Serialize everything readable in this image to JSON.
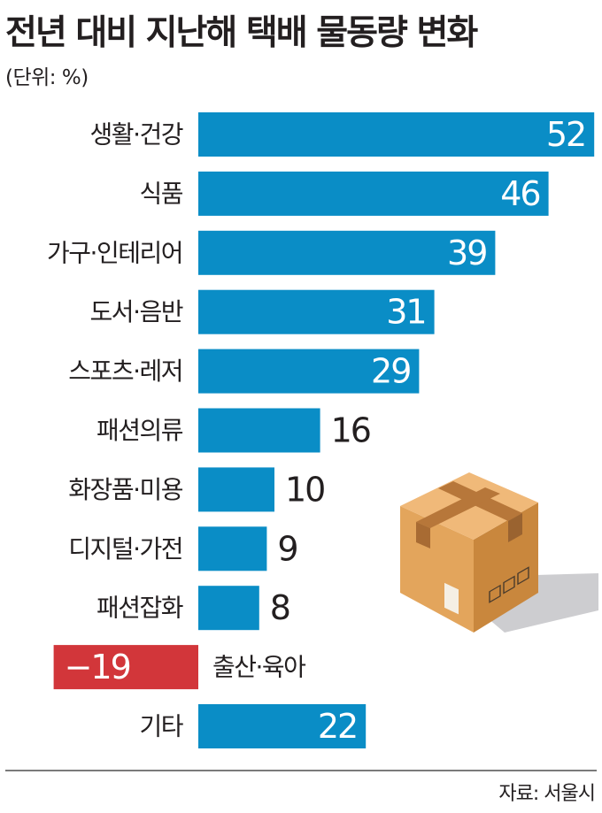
{
  "title": "전년 대비 지난해 택배 물동량 변화",
  "unit_note": "(단위: %)",
  "source": "자료: 서울시",
  "colors": {
    "positive": "#0a8dc6",
    "negative": "#d2363a",
    "text": "#231f20"
  },
  "chart_data": {
    "type": "bar",
    "orientation": "horizontal",
    "categories": [
      "생활·건강",
      "식품",
      "가구·인테리어",
      "도서·음반",
      "스포츠·레저",
      "패션의류",
      "화장품·미용",
      "디지털·가전",
      "패션잡화",
      "출산·육아",
      "기타"
    ],
    "values": [
      52,
      46,
      39,
      31,
      29,
      16,
      10,
      9,
      8,
      -19,
      22
    ],
    "value_labels": [
      "52",
      "46",
      "39",
      "31",
      "29",
      "16",
      "10",
      "9",
      "8",
      "−19",
      "22"
    ],
    "unit": "%",
    "xlim": [
      -19,
      52
    ],
    "grid": false,
    "legend": "none"
  }
}
